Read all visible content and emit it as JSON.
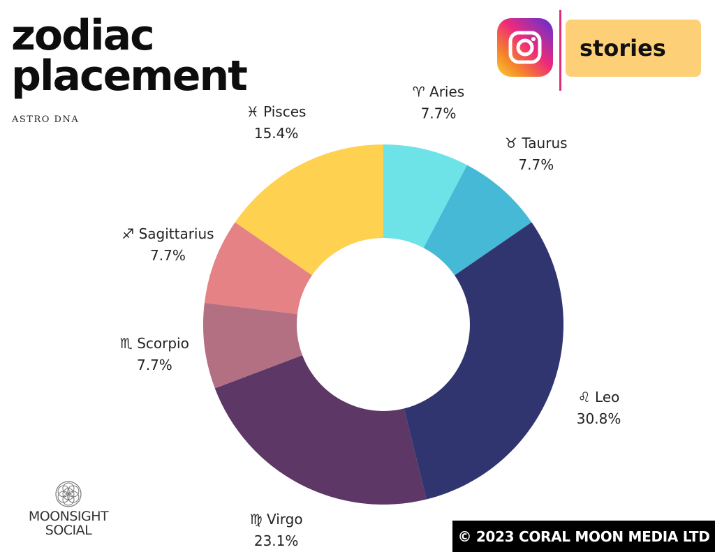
{
  "header": {
    "title_line1": "zodiac",
    "title_line2": "placement",
    "subtitle": "ASTRO DNA"
  },
  "social": {
    "icon": "instagram-icon",
    "badge_label": "stories",
    "badge_color": "#fdd078",
    "divider_color": "#e32b7b"
  },
  "chart_data": {
    "type": "pie",
    "donut": true,
    "title": "",
    "slices": [
      {
        "symbol": "♈",
        "name": "Aries",
        "value": 7.7,
        "value_label": "7.7%",
        "color": "#6de3e8"
      },
      {
        "symbol": "♉",
        "name": "Taurus",
        "value": 7.7,
        "value_label": "7.7%",
        "color": "#45b9d6"
      },
      {
        "symbol": "♌",
        "name": "Leo",
        "value": 30.8,
        "value_label": "30.8%",
        "color": "#303570"
      },
      {
        "symbol": "♍",
        "name": "Virgo",
        "value": 23.1,
        "value_label": "23.1%",
        "color": "#5d3766"
      },
      {
        "symbol": "♏",
        "name": "Scorpio",
        "value": 7.7,
        "value_label": "7.7%",
        "color": "#b47083"
      },
      {
        "symbol": "♐",
        "name": "Sagittarius",
        "value": 7.7,
        "value_label": "7.7%",
        "color": "#e48285"
      },
      {
        "symbol": "♓",
        "name": "Pisces",
        "value": 15.4,
        "value_label": "15.4%",
        "color": "#fed150"
      }
    ]
  },
  "branding": {
    "logo_icon": "flower-of-life-icon",
    "line1": "MOONSIGHT",
    "line2": "SOCIAL"
  },
  "footer": {
    "copyright": "© 2023 CORAL MOON MEDIA LTD"
  }
}
